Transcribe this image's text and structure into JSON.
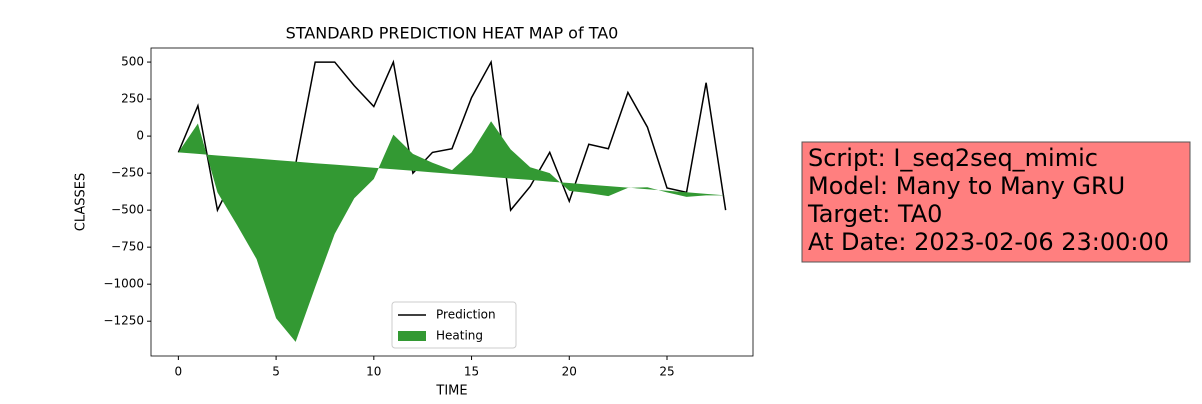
{
  "chart_data": {
    "type": "line",
    "title": "STANDARD PREDICTION HEAT MAP of TA0",
    "x_label": "TIME",
    "y_label": "CLASSES",
    "x": [
      0,
      1,
      2,
      3,
      4,
      5,
      6,
      7,
      8,
      9,
      10,
      11,
      12,
      13,
      14,
      15,
      16,
      17,
      18,
      19,
      20,
      21,
      22,
      23,
      24,
      25,
      26,
      27,
      28
    ],
    "series": [
      {
        "name": "Prediction",
        "kind": "line",
        "color": "#000000",
        "values": [
          -110,
          205,
          -500,
          -235,
          -270,
          -500,
          -190,
          500,
          500,
          340,
          200,
          500,
          -250,
          -110,
          -85,
          260,
          500,
          -500,
          -340,
          -110,
          -440,
          -55,
          -85,
          295,
          60,
          -350,
          -380,
          360,
          -500
        ]
      },
      {
        "name": "Heating",
        "kind": "fill_between",
        "color": "#339933",
        "values": [
          -110,
          85,
          -380,
          -600,
          -830,
          -1230,
          -1390,
          -1020,
          -660,
          -420,
          -290,
          10,
          -120,
          -180,
          -230,
          -110,
          100,
          -90,
          -210,
          -250,
          -370,
          -385,
          -405,
          -350,
          -345,
          -380,
          -410,
          -400,
          -400
        ],
        "base": [
          -110,
          -120,
          -131,
          -141,
          -151,
          -162,
          -172,
          -183,
          -193,
          -203,
          -214,
          -224,
          -234,
          -245,
          -255,
          -265,
          -276,
          -286,
          -296,
          -307,
          -317,
          -328,
          -338,
          -348,
          -359,
          -369,
          -379,
          -390,
          -400
        ]
      }
    ],
    "xlim": [
      -1.4,
      29.4
    ],
    "ylim": [
      -1485,
      595
    ],
    "xticks": [
      0,
      5,
      10,
      15,
      20,
      25
    ],
    "yticks": [
      500,
      250,
      0,
      {
        "value": -250,
        "label": "−250"
      },
      {
        "value": -500,
        "label": "−500"
      },
      {
        "value": -750,
        "label": "−750"
      },
      {
        "value": -1000,
        "label": "−1000"
      },
      {
        "value": -1250,
        "label": "−1250"
      }
    ],
    "legend": "lower center",
    "annotation": [
      "Script: I_seq2seq_mimic",
      "Model: Many to Many GRU",
      "Target: TA0",
      "At Date: 2023-02-06 23:00:00"
    ],
    "annotation_color": "#ff7f7f"
  }
}
